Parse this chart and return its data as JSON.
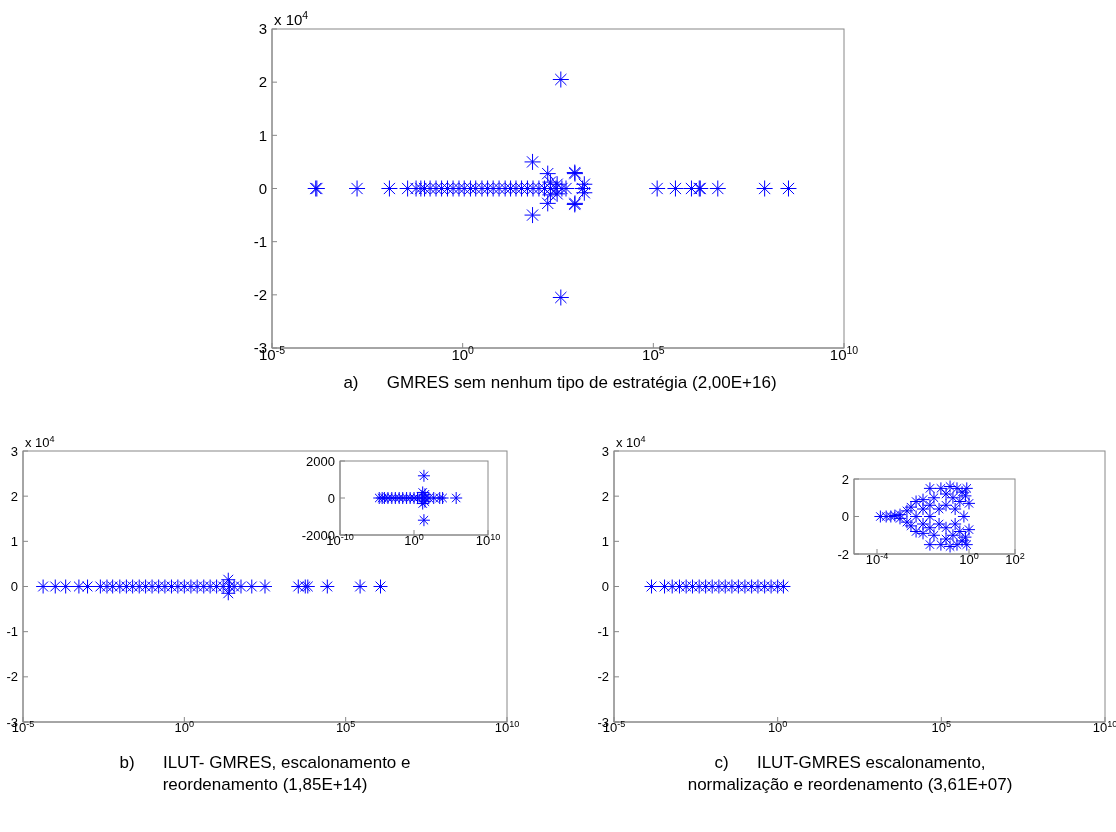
{
  "chart_data": [
    {
      "type": "scatter",
      "title": "a)      GMRES sem nenhum tipo de estratégia (2,00E+16)",
      "annotations": [
        "x 10$^{4}$"
      ],
      "marker": "cross",
      "log": "x",
      "grid": false,
      "xlim": [
        1e-05,
        10000000000.0
      ],
      "xticks": [
        {
          "value": 1e-05,
          "label": "10$^{-5}$"
        },
        {
          "value": 1,
          "label": "10$^{0}$"
        },
        {
          "value": 100000.0,
          "label": "10$^{5}$"
        },
        {
          "value": 10000000000.0,
          "label": "10$^{10}$"
        }
      ],
      "ylim": [
        -3,
        3
      ],
      "yticks": [
        -3,
        -2,
        -1,
        0,
        1,
        2,
        3
      ],
      "series": [
        {
          "color": "#0000ff",
          "x": [
            0.00014,
            0.00015,
            0.0017,
            0.012,
            0.036,
            0.06,
            0.08,
            0.1,
            0.14,
            0.2,
            0.28,
            0.4,
            0.56,
            0.8,
            1.1,
            1.6,
            2.2,
            3.2,
            4.5,
            6.3,
            9,
            13,
            18,
            25,
            35,
            50,
            70,
            100,
            140,
            200,
            280,
            400,
            513,
            200,
            200,
            300,
            300,
            68,
            68,
            170,
            170,
            375,
            375,
            870,
            870,
            880,
            880,
            1550,
            1550,
            1400,
            126000.0,
            380000.0,
            1000000.0,
            1600000.0,
            1700000.0,
            4900000.0,
            83000000.0,
            350000000.0
          ],
          "values": [
            0,
            0,
            0,
            0,
            0,
            0,
            0,
            0,
            0,
            0,
            0,
            0,
            0,
            0,
            0,
            0,
            0,
            0,
            0,
            0,
            0,
            0,
            0,
            0,
            0,
            0,
            0,
            0,
            0,
            0,
            0,
            0,
            0,
            0.12,
            -0.12,
            0.08,
            -0.1,
            0.5,
            -0.5,
            0.28,
            -0.28,
            2.05,
            -2.05,
            0.3,
            -0.3,
            0.28,
            -0.28,
            0.08,
            -0.08,
            0,
            0,
            0,
            0,
            0,
            0,
            0,
            0,
            0
          ]
        }
      ]
    },
    {
      "type": "scatter",
      "title": "b)      ILUT- GMRES, escalonamento e reordenamento (1,85E+14)",
      "annotations": [
        "x 10$^{4}$"
      ],
      "marker": "cross",
      "log": "x",
      "grid": false,
      "xlim": [
        1e-05,
        10000000000.0
      ],
      "xticks": [
        {
          "value": 1e-05,
          "label": "10$^{-5}$"
        },
        {
          "value": 1,
          "label": "10$^{0}$"
        },
        {
          "value": 100000.0,
          "label": "10$^{5}$"
        },
        {
          "value": 10000000000.0,
          "label": "10$^{10}$"
        }
      ],
      "ylim": [
        -3,
        3
      ],
      "yticks": [
        -3,
        -2,
        -1,
        0,
        1,
        2,
        3
      ],
      "series": [
        {
          "color": "#0000ff",
          "x": [
            4.2e-05,
            0.0001,
            0.00021,
            0.00054,
            0.001,
            0.0025,
            0.004,
            0.006,
            0.01,
            0.016,
            0.025,
            0.04,
            0.063,
            0.1,
            0.16,
            0.25,
            0.4,
            0.63,
            1,
            1.6,
            2.5,
            4,
            6.3,
            10,
            16,
            25,
            35,
            23,
            23,
            57,
            123,
            316,
            3400,
            5600,
            6700,
            27000.0,
            280000.0,
            1200000.0
          ],
          "values": [
            0,
            0,
            0,
            0,
            0,
            0,
            0,
            0,
            0,
            0,
            0,
            0,
            0,
            0,
            0,
            0,
            0,
            0,
            0,
            0,
            0,
            0,
            0,
            0,
            0,
            0,
            0,
            0.15,
            -0.15,
            0,
            0,
            0,
            0,
            0,
            0,
            0,
            0,
            0
          ]
        }
      ]
    },
    {
      "type": "scatter",
      "marker": "cross",
      "log": "x",
      "grid": false,
      "xlim": [
        1e-10,
        10000000000.0
      ],
      "xticks": [
        {
          "value": 1e-10,
          "label": "10$^{-10}$"
        },
        {
          "value": 1,
          "label": "10$^{0}$"
        },
        {
          "value": 10000000000.0,
          "label": "10$^{10}$"
        }
      ],
      "ylim": [
        -2000,
        2000
      ],
      "yticks": [
        -2000,
        0,
        2000
      ],
      "series": [
        {
          "color": "#0000ff",
          "x": [
            2e-05,
            5e-05,
            0.0001,
            0.0003,
            0.001,
            0.003,
            0.01,
            0.03,
            0.1,
            0.3,
            1,
            3,
            10,
            30,
            100,
            460,
            22,
            22,
            15,
            15,
            30,
            30,
            3000,
            7300,
            500000.0
          ],
          "values": [
            0,
            0,
            0,
            0,
            0,
            0,
            0,
            0,
            0,
            0,
            0,
            0,
            0,
            0,
            0,
            0,
            1200,
            -1200,
            300,
            -300,
            200,
            -200,
            0,
            0,
            0
          ]
        }
      ]
    },
    {
      "type": "scatter",
      "title": "c)      ILUT-GMRES escalonamento, normalização e reordenamento (3,61E+07)",
      "annotations": [
        "x 10$^{4}$"
      ],
      "marker": "cross",
      "log": "x",
      "grid": false,
      "xlim": [
        1e-05,
        10000000000.0
      ],
      "xticks": [
        {
          "value": 1e-05,
          "label": "10$^{-5}$"
        },
        {
          "value": 1,
          "label": "10$^{0}$"
        },
        {
          "value": 100000.0,
          "label": "10$^{5}$"
        },
        {
          "value": 10000000000.0,
          "label": "10$^{10}$"
        }
      ],
      "ylim": [
        -3,
        3
      ],
      "yticks": [
        -3,
        -2,
        -1,
        0,
        1,
        2,
        3
      ],
      "series": [
        {
          "color": "#0000ff",
          "x": [
            0.00014,
            0.00035,
            0.0006,
            0.001,
            0.0016,
            0.0025,
            0.004,
            0.0063,
            0.01,
            0.016,
            0.025,
            0.04,
            0.063,
            0.1,
            0.16,
            0.25,
            0.4,
            0.63,
            1,
            1.5
          ],
          "values": [
            0,
            0,
            0,
            0,
            0,
            0,
            0,
            0,
            0,
            0,
            0,
            0,
            0,
            0,
            0,
            0,
            0,
            0,
            0,
            0
          ]
        }
      ]
    },
    {
      "type": "scatter",
      "marker": "cross",
      "log": "x",
      "grid": false,
      "xlim": [
        1e-05,
        100
      ],
      "xticks": [
        {
          "value": 0.0001,
          "label": "10$^{-4}$"
        },
        {
          "value": 1,
          "label": "10$^{0}$"
        },
        {
          "value": 100,
          "label": "10$^{2}$"
        }
      ],
      "ylim": [
        -2,
        2
      ],
      "yticks": [
        -2,
        0,
        2
      ],
      "series": [
        {
          "color": "#0000ff",
          "x": [
            0.00014,
            0.00025,
            0.0004,
            0.0006,
            0.001,
            0.001,
            0.002,
            0.002,
            0.003,
            0.003,
            0.005,
            0.005,
            0.005,
            0.01,
            0.01,
            0.01,
            0.01,
            0.02,
            0.02,
            0.02,
            0.02,
            0.02,
            0.03,
            0.03,
            0.05,
            0.05,
            0.06,
            0.06,
            0.1,
            0.1,
            0.1,
            0.1,
            0.15,
            0.15,
            0.2,
            0.2,
            0.25,
            0.25,
            0.3,
            0.3,
            0.4,
            0.4,
            0.5,
            0.5,
            0.6,
            0.7,
            0.7,
            1,
            1,
            0.8,
            0.8
          ],
          "values": [
            0,
            0,
            0,
            0.05,
            0.1,
            -0.1,
            0.3,
            -0.3,
            0.5,
            -0.5,
            0.8,
            -0.8,
            0,
            0.4,
            -0.4,
            0.9,
            -0.9,
            1.5,
            -1.5,
            0.6,
            -0.6,
            0,
            1,
            -1,
            0.4,
            -0.4,
            1.5,
            -1.5,
            1.2,
            -1.2,
            0.6,
            -0.6,
            1.6,
            -1.6,
            1,
            -1,
            0.4,
            -0.4,
            1.5,
            -1.5,
            0.8,
            -0.8,
            1.3,
            -1.3,
            0,
            1.1,
            -1.1,
            0.7,
            -0.7,
            1.5,
            -1.5
          ]
        }
      ]
    }
  ]
}
